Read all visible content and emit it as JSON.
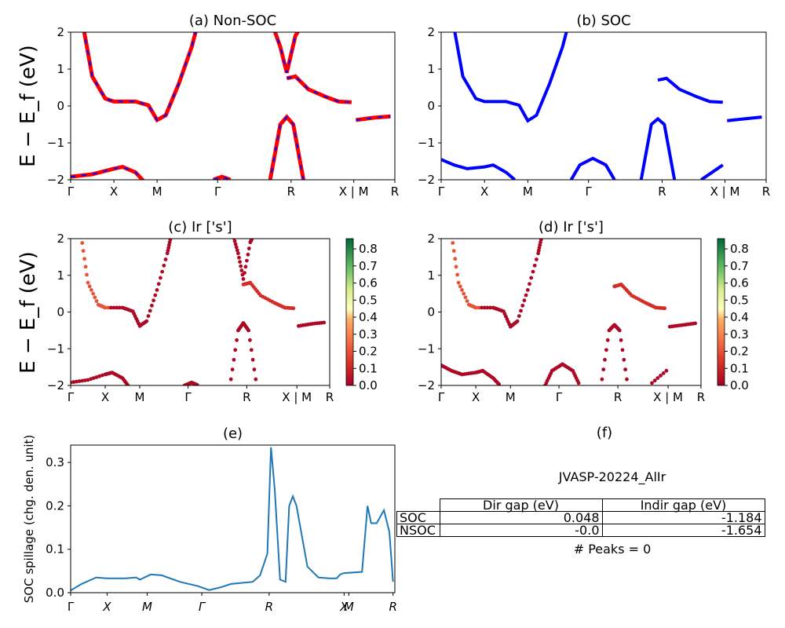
{
  "titles": {
    "a": "(a) Non-SOC",
    "b": "(b) SOC",
    "c": "(c)  Ir ['s']",
    "d": "(d) Ir ['s']",
    "e": "(e)",
    "f": "(f)"
  },
  "ylabel_band": "E − E_f (eV)",
  "ylabel_spillage": "SOC spillage (chg. den. unit)",
  "kpath_labels": [
    "Γ",
    "X",
    "M",
    "Γ",
    "R",
    "X | M",
    "R"
  ],
  "spillage_kpath_labels": [
    "Γ",
    "X",
    "M",
    "Γ",
    "R",
    "X",
    "M",
    "R"
  ],
  "colorbar_ticks": [
    "0.0",
    "0.1",
    "0.2",
    "0.3",
    "0.4",
    "0.5",
    "0.6",
    "0.7",
    "0.8"
  ],
  "table": {
    "title": "JVASP-20224_AlIr",
    "headers": [
      "",
      "Dir gap (eV)",
      "Indir gap (eV)"
    ],
    "rows": [
      {
        "label": "SOC",
        "dir": "0.048",
        "indir": "-1.184"
      },
      {
        "label": "NSOC",
        "dir": "-0.0",
        "indir": "-1.654"
      }
    ],
    "peaks": "# Peaks = 0"
  },
  "colors": {
    "nonsoc_band": "#ff0000",
    "nonsoc_dash": "#0000ff",
    "soc_band": "#0000ff",
    "spillage_line": "#1f77b4",
    "colormap_low": "#a50026",
    "colormap_mid": "#ffffbf",
    "colormap_high": "#006837"
  },
  "chart_data": [
    {
      "panel": "a",
      "type": "line",
      "title": "(a) Non-SOC",
      "ylabel": "E − E_f (eV)",
      "ylim": [
        -2,
        2
      ],
      "yticks": [
        -2,
        -1,
        0,
        1,
        2
      ],
      "xticks": [
        "Γ",
        "X",
        "M",
        "Γ",
        "R",
        "X | M",
        "R"
      ],
      "series": [
        {
          "values": [
            [
              0,
              -1.92
            ],
            [
              0.5,
              -1.85
            ],
            [
              1,
              -1.7
            ],
            [
              1.2,
              -1.65
            ],
            [
              1.5,
              -1.8
            ],
            [
              1.7,
              -2.05
            ]
          ]
        },
        {
          "values": [
            [
              0.3,
              2.1
            ],
            [
              0.5,
              0.8
            ],
            [
              0.8,
              0.2
            ],
            [
              1,
              0.12
            ],
            [
              1.5,
              0.12
            ],
            [
              1.8,
              0.02
            ],
            [
              2,
              -0.38
            ],
            [
              2.2,
              -0.25
            ],
            [
              2.5,
              0.6
            ],
            [
              2.8,
              1.6
            ],
            [
              2.9,
              2.05
            ]
          ]
        },
        {
          "values": [
            [
              3.3,
              -2.0
            ],
            [
              3.5,
              -1.92
            ],
            [
              3.7,
              -2.0
            ]
          ]
        },
        {
          "values": [
            [
              5.0,
              0.75
            ],
            [
              5.2,
              0.8
            ],
            [
              5.5,
              0.45
            ],
            [
              5.9,
              0.25
            ],
            [
              6.2,
              0.12
            ],
            [
              6.5,
              0.1
            ]
          ]
        },
        {
          "values": [
            [
              4.6,
              -2.1
            ],
            [
              4.85,
              -0.5
            ],
            [
              5.0,
              -0.3
            ],
            [
              5.15,
              -0.5
            ],
            [
              5.4,
              -2.1
            ]
          ]
        },
        {
          "values": [
            [
              4.7,
              2.1
            ],
            [
              4.85,
              1.6
            ],
            [
              5.0,
              0.9
            ],
            [
              5.2,
              1.9
            ],
            [
              5.3,
              2.1
            ]
          ]
        },
        {
          "values": [
            [
              6.6,
              -0.38
            ],
            [
              7.0,
              -0.32
            ],
            [
              7.4,
              -0.28
            ]
          ]
        }
      ]
    },
    {
      "panel": "b",
      "type": "line",
      "title": "(b) SOC",
      "ylim": [
        -2,
        2
      ],
      "yticks": [
        -2,
        -1,
        0,
        1,
        2
      ],
      "xticks": [
        "Γ",
        "X",
        "M",
        "Γ",
        "R",
        "X | M",
        "R"
      ],
      "series": [
        {
          "values": [
            [
              0,
              -1.45
            ],
            [
              0.3,
              -1.6
            ],
            [
              0.6,
              -1.7
            ],
            [
              1,
              -1.65
            ],
            [
              1.2,
              -1.6
            ],
            [
              1.5,
              -1.8
            ],
            [
              1.7,
              -2.0
            ]
          ]
        },
        {
          "values": [
            [
              0.3,
              2.1
            ],
            [
              0.5,
              0.8
            ],
            [
              0.8,
              0.2
            ],
            [
              1,
              0.12
            ],
            [
              1.5,
              0.12
            ],
            [
              1.8,
              0.02
            ],
            [
              2,
              -0.4
            ],
            [
              2.2,
              -0.25
            ],
            [
              2.5,
              0.6
            ],
            [
              2.8,
              1.6
            ],
            [
              2.9,
              2.05
            ]
          ]
        },
        {
          "values": [
            [
              3.0,
              -2.0
            ],
            [
              3.2,
              -1.6
            ],
            [
              3.5,
              -1.42
            ],
            [
              3.8,
              -1.6
            ],
            [
              4.0,
              -2.0
            ]
          ]
        },
        {
          "values": [
            [
              5.0,
              0.7
            ],
            [
              5.2,
              0.75
            ],
            [
              5.5,
              0.45
            ],
            [
              5.9,
              0.25
            ],
            [
              6.2,
              0.12
            ],
            [
              6.5,
              0.1
            ]
          ]
        },
        {
          "values": [
            [
              4.6,
              -2.1
            ],
            [
              4.85,
              -0.5
            ],
            [
              5.0,
              -0.35
            ],
            [
              5.15,
              -0.5
            ],
            [
              5.4,
              -2.1
            ]
          ]
        },
        {
          "values": [
            [
              6.5,
              -1.6
            ],
            [
              6.0,
              -2.0
            ]
          ]
        },
        {
          "values": [
            [
              6.6,
              -0.4
            ],
            [
              7.0,
              -0.35
            ],
            [
              7.4,
              -0.3
            ]
          ]
        }
      ]
    },
    {
      "panel": "c",
      "type": "scatter",
      "title": "(c)  Ir ['s']",
      "ylabel": "E − E_f (eV)",
      "ylim": [
        -2,
        2
      ],
      "colorbar_range": [
        0.0,
        0.85
      ],
      "xticks": [
        "Γ",
        "X",
        "M",
        "Γ",
        "R",
        "X | M",
        "R"
      ]
    },
    {
      "panel": "d",
      "type": "scatter",
      "title": "(d) Ir ['s']",
      "ylim": [
        -2,
        2
      ],
      "colorbar_range": [
        0.0,
        0.85
      ],
      "xticks": [
        "Γ",
        "X",
        "M",
        "Γ",
        "R",
        "X | M",
        "R"
      ]
    },
    {
      "panel": "e",
      "type": "line",
      "title": "(e)",
      "ylabel": "SOC spillage (chg. den. unit)",
      "ylim": [
        0,
        0.34
      ],
      "yticks": [
        0.0,
        0.1,
        0.2,
        0.3
      ],
      "xticks": [
        "Γ",
        "X",
        "M",
        "Γ",
        "R",
        "X",
        "M",
        "R"
      ],
      "series": [
        {
          "values": [
            [
              0,
              0.005
            ],
            [
              0.3,
              0.02
            ],
            [
              0.7,
              0.035
            ],
            [
              1.0,
              0.033
            ],
            [
              1.5,
              0.033
            ],
            [
              1.8,
              0.035
            ],
            [
              1.9,
              0.03
            ],
            [
              2.2,
              0.042
            ],
            [
              2.5,
              0.04
            ],
            [
              3.0,
              0.025
            ],
            [
              3.5,
              0.015
            ],
            [
              3.8,
              0.006
            ],
            [
              4.1,
              0.012
            ],
            [
              4.4,
              0.02
            ],
            [
              5.0,
              0.025
            ],
            [
              5.2,
              0.04
            ],
            [
              5.4,
              0.09
            ],
            [
              5.5,
              0.335
            ],
            [
              5.6,
              0.24
            ],
            [
              5.75,
              0.03
            ],
            [
              5.9,
              0.025
            ],
            [
              6.0,
              0.2
            ],
            [
              6.1,
              0.222
            ],
            [
              6.2,
              0.2
            ],
            [
              6.5,
              0.06
            ],
            [
              6.8,
              0.035
            ],
            [
              7.1,
              0.033
            ],
            [
              7.3,
              0.033
            ],
            [
              7.4,
              0.042
            ],
            [
              7.5,
              0.045
            ],
            [
              8.0,
              0.048
            ],
            [
              8.15,
              0.2
            ],
            [
              8.25,
              0.16
            ],
            [
              8.4,
              0.16
            ],
            [
              8.6,
              0.19
            ],
            [
              8.75,
              0.14
            ],
            [
              8.85,
              0.025
            ]
          ]
        }
      ]
    }
  ]
}
